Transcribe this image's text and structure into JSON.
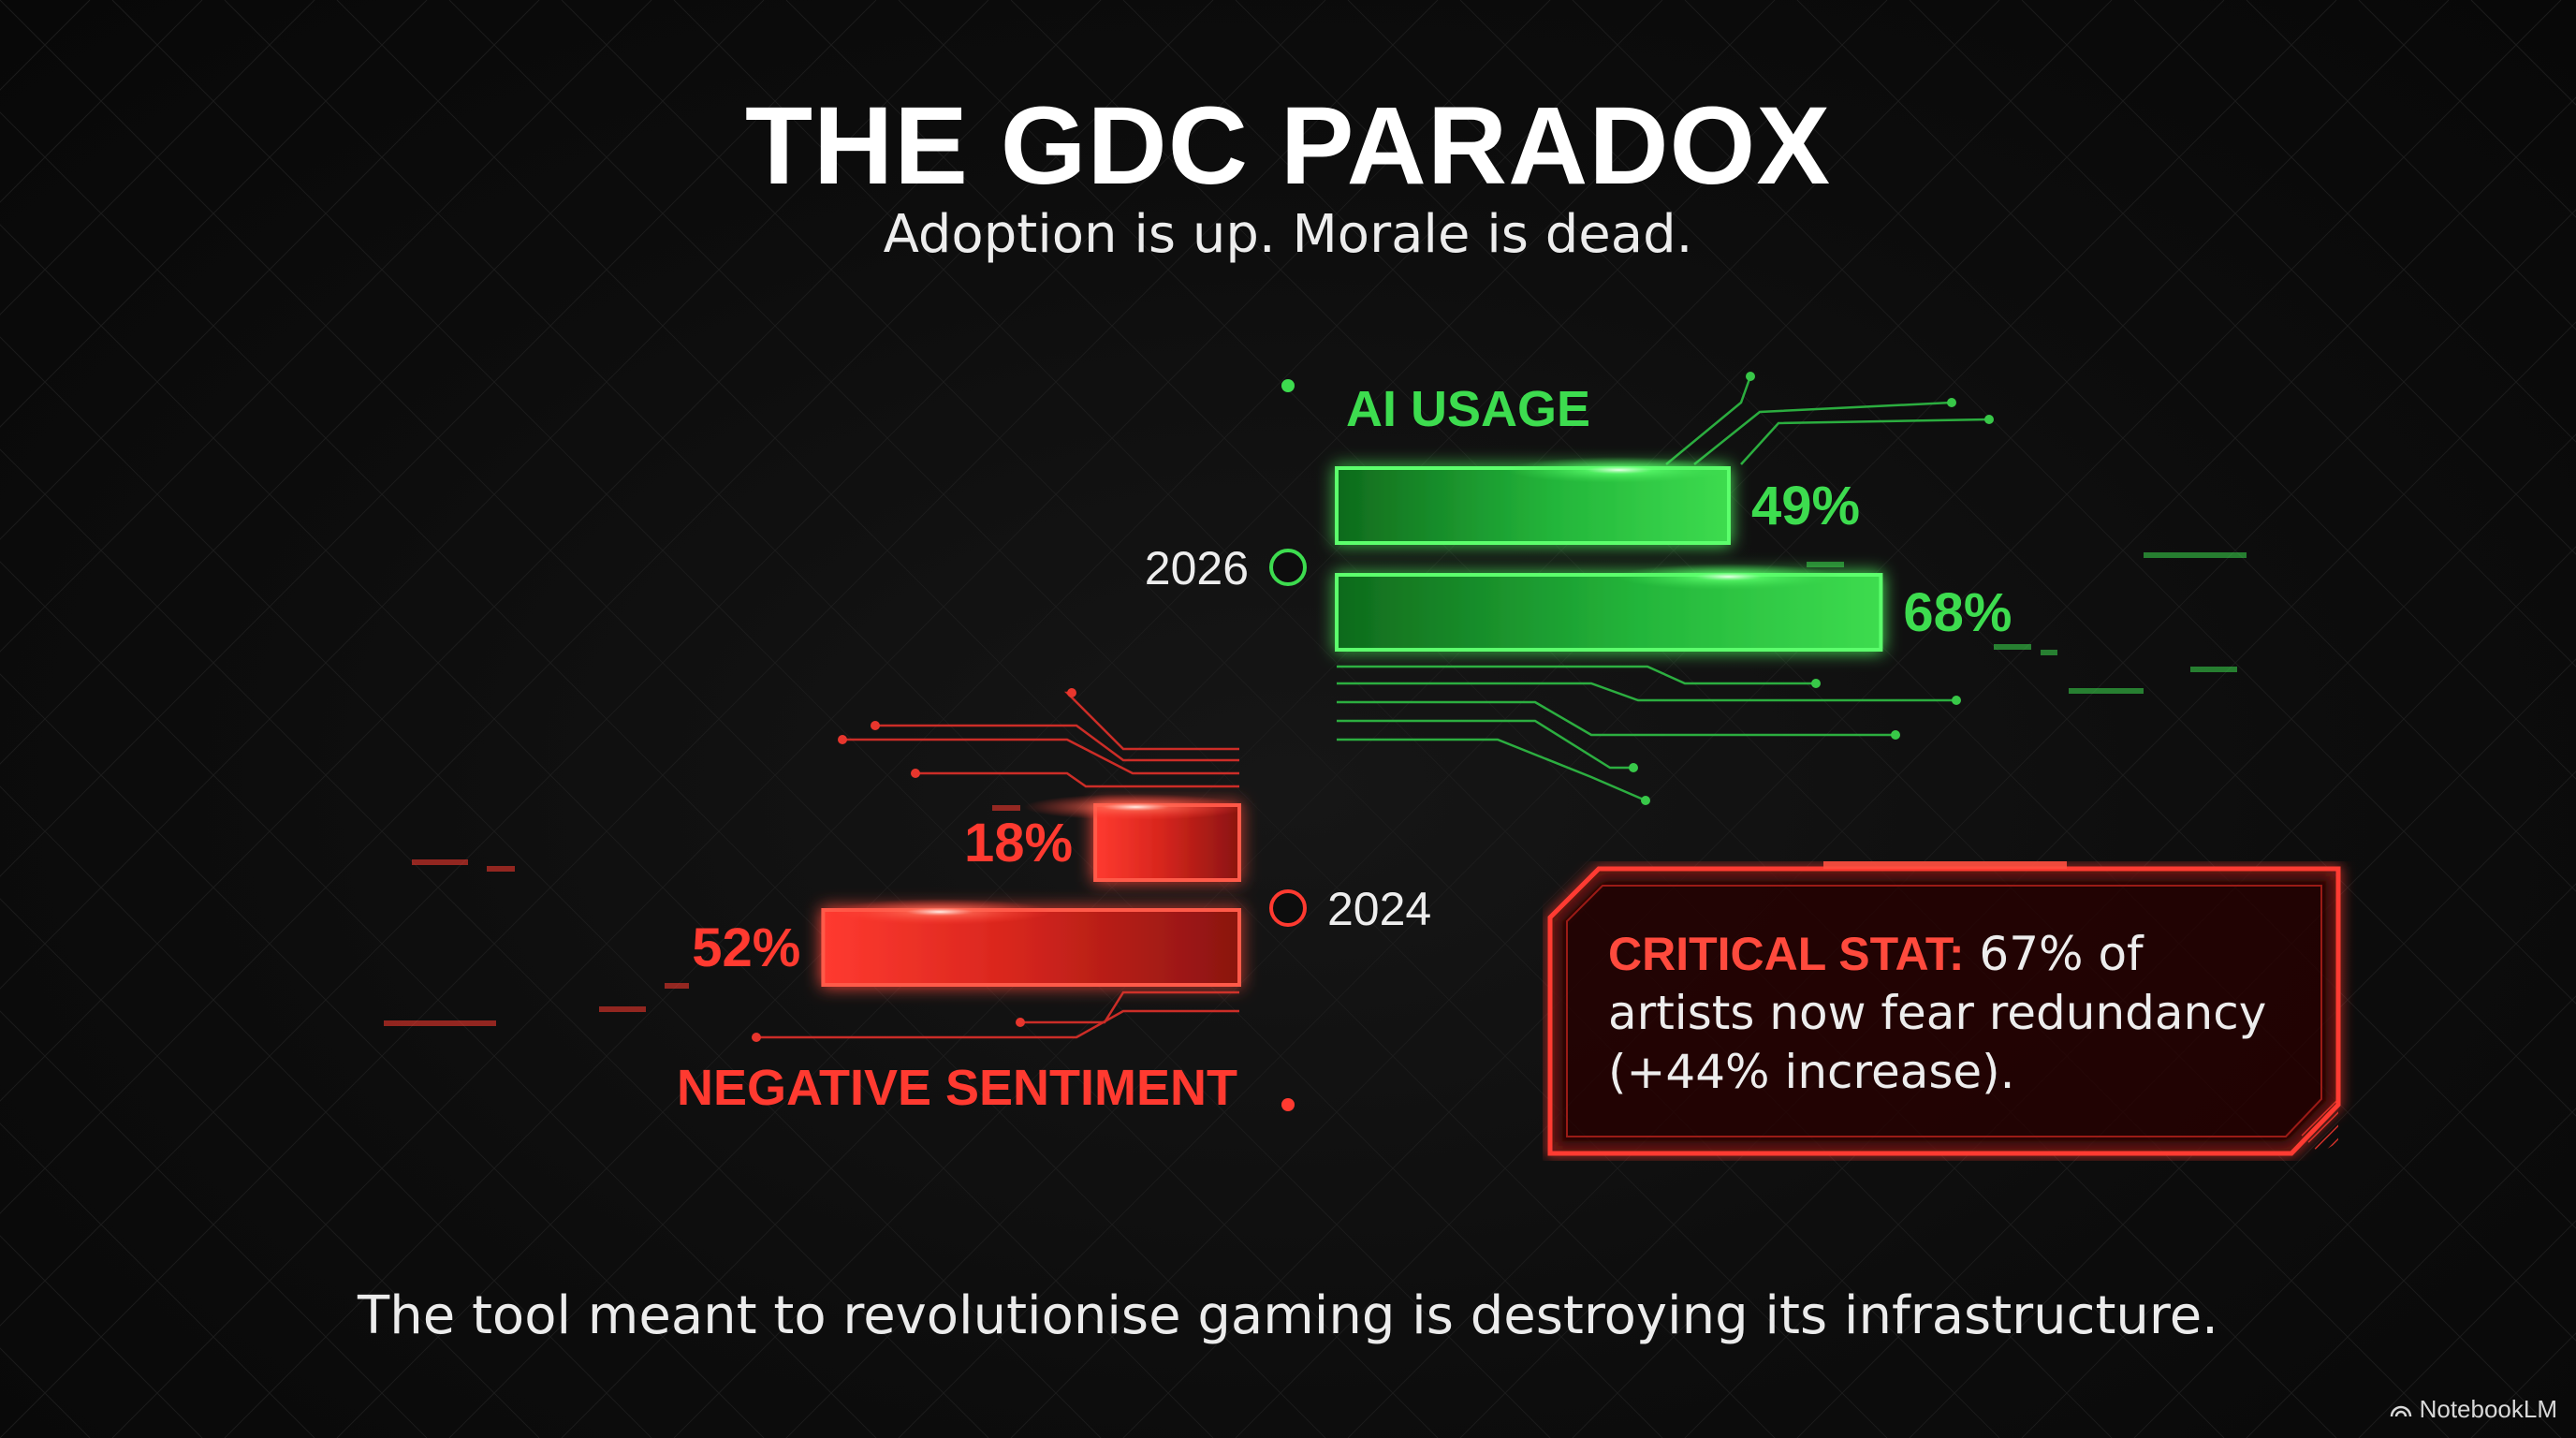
{
  "header": {
    "title": "THE GDC PARADOX",
    "subtitle": "Adoption is up. Morale is dead."
  },
  "colors": {
    "positive": "#3ddc4f",
    "negative": "#ff3a30",
    "background": "#0b0b0b"
  },
  "chart_data": {
    "type": "bar",
    "layout": "diverging-timeline",
    "categories": [
      "2026",
      "2024"
    ],
    "series": [
      {
        "name": "AI USAGE",
        "direction": "right",
        "color": "#3ddc4f",
        "points": [
          {
            "label": "49%",
            "value": 49
          },
          {
            "label": "68%",
            "value": 68
          }
        ]
      },
      {
        "name": "NEGATIVE SENTIMENT",
        "direction": "left",
        "color": "#ff3a30",
        "points": [
          {
            "label": "18%",
            "value": 18
          },
          {
            "label": "52%",
            "value": 52
          }
        ]
      }
    ]
  },
  "callout": {
    "label": "CRITICAL STAT:",
    "text": " 67% of artists now fear redundancy (+44% increase)."
  },
  "footer": {
    "caption": "The tool meant to revolutionise gaming is destroying its infrastructure."
  },
  "brand": {
    "name": "NotebookLM",
    "icon": "notebooklm-logo-icon"
  }
}
